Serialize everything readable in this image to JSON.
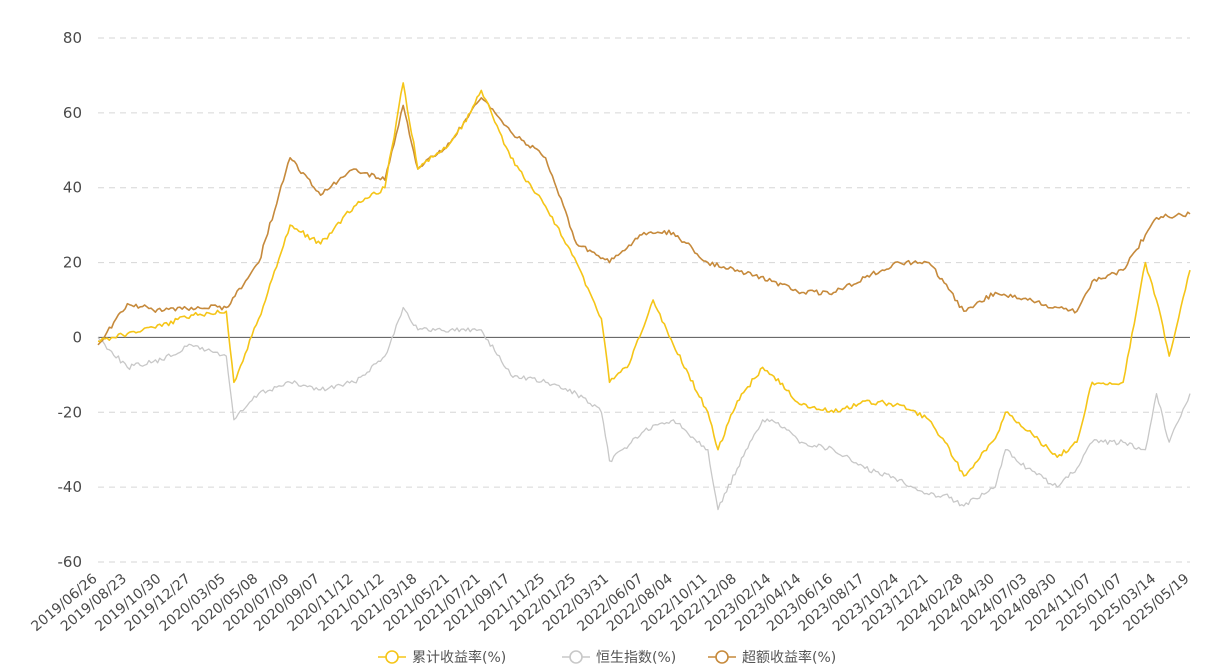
{
  "chart_data": {
    "type": "line",
    "title": "",
    "xlabel": "",
    "ylabel": "",
    "ylim": [
      -60,
      80
    ],
    "yticks": [
      80,
      60,
      40,
      20,
      0,
      -20,
      -40,
      -60
    ],
    "x_tick_labels": [
      "2019/06/26",
      "2019/08/23",
      "2019/10/30",
      "2019/12/27",
      "2020/03/05",
      "2020/05/08",
      "2020/07/09",
      "2020/09/07",
      "2020/11/12",
      "2021/01/12",
      "2021/03/18",
      "2021/05/21",
      "2021/07/21",
      "2021/09/17",
      "2021/11/25",
      "2022/01/25",
      "2022/03/31",
      "2022/06/07",
      "2022/08/04",
      "2022/10/11",
      "2022/12/08",
      "2023/02/14",
      "2023/04/14",
      "2023/06/16",
      "2023/08/17",
      "2023/10/24",
      "2023/12/21",
      "2024/02/28",
      "2024/04/30",
      "2024/07/03",
      "2024/08/30",
      "2024/11/07",
      "2025/01/07",
      "2025/03/14",
      "2025/05/19"
    ],
    "grid": true,
    "legend_position": "bottom",
    "series": [
      {
        "name": "累计收益率(%)",
        "color": "#f5c518",
        "x": [
          "2019/06/26",
          "2019/08/23",
          "2019/10/30",
          "2019/12/27",
          "2020/03/05",
          "2020/03/20",
          "2020/05/08",
          "2020/07/09",
          "2020/09/07",
          "2020/11/12",
          "2021/01/12",
          "2021/02/17",
          "2021/03/18",
          "2021/05/21",
          "2021/06/30",
          "2021/07/21",
          "2021/09/17",
          "2021/11/25",
          "2022/01/25",
          "2022/03/15",
          "2022/03/31",
          "2022/05/05",
          "2022/06/07",
          "2022/06/25",
          "2022/08/04",
          "2022/10/11",
          "2022/10/31",
          "2022/12/08",
          "2023/01/27",
          "2023/02/14",
          "2023/04/14",
          "2023/06/16",
          "2023/08/17",
          "2023/10/24",
          "2023/12/21",
          "2024/01/22",
          "2024/02/28",
          "2024/04/30",
          "2024/05/20",
          "2024/07/03",
          "2024/08/30",
          "2024/10/08",
          "2024/11/07",
          "2025/01/07",
          "2025/02/20",
          "2025/03/14",
          "2025/04/08",
          "2025/05/19"
        ],
        "values": [
          -1,
          1,
          3,
          6,
          7,
          -12,
          5,
          30,
          25,
          35,
          40,
          68,
          45,
          52,
          60,
          66,
          48,
          35,
          20,
          5,
          -12,
          -8,
          3,
          10,
          -2,
          -20,
          -30,
          -17,
          -8,
          -10,
          -18,
          -20,
          -17,
          -18,
          -22,
          -28,
          -37,
          -27,
          -20,
          -25,
          -32,
          -28,
          -12,
          -12,
          20,
          10,
          -5,
          18
        ]
      },
      {
        "name": "恒生指数(%)",
        "color": "#c8c8c8",
        "x": [
          "2019/06/26",
          "2019/08/23",
          "2019/10/30",
          "2019/12/27",
          "2020/03/05",
          "2020/03/20",
          "2020/05/08",
          "2020/07/09",
          "2020/09/07",
          "2020/11/12",
          "2021/01/12",
          "2021/02/17",
          "2021/03/18",
          "2021/05/21",
          "2021/07/21",
          "2021/09/17",
          "2021/11/25",
          "2022/01/25",
          "2022/03/15",
          "2022/03/31",
          "2022/06/07",
          "2022/08/04",
          "2022/10/11",
          "2022/10/31",
          "2022/12/08",
          "2023/01/27",
          "2023/02/14",
          "2023/04/14",
          "2023/06/16",
          "2023/08/17",
          "2023/10/24",
          "2023/12/21",
          "2024/01/22",
          "2024/02/28",
          "2024/04/30",
          "2024/05/20",
          "2024/07/03",
          "2024/08/30",
          "2024/10/08",
          "2024/11/07",
          "2025/01/07",
          "2025/02/20",
          "2025/03/14",
          "2025/04/08",
          "2025/05/19"
        ],
        "values": [
          0,
          -8,
          -6,
          -2,
          -5,
          -22,
          -15,
          -12,
          -14,
          -12,
          -5,
          8,
          2,
          2,
          2,
          -10,
          -12,
          -15,
          -20,
          -33,
          -25,
          -22,
          -30,
          -46,
          -35,
          -22,
          -22,
          -28,
          -30,
          -35,
          -38,
          -42,
          -42,
          -45,
          -40,
          -30,
          -35,
          -40,
          -35,
          -28,
          -28,
          -30,
          -15,
          -28,
          -15
        ]
      },
      {
        "name": "超额收益率(%)",
        "color": "#c68a3c",
        "x": [
          "2019/06/26",
          "2019/08/23",
          "2019/10/30",
          "2019/12/27",
          "2020/03/05",
          "2020/05/08",
          "2020/07/09",
          "2020/09/07",
          "2020/11/12",
          "2021/01/12",
          "2021/02/17",
          "2021/03/18",
          "2021/05/21",
          "2021/07/21",
          "2021/09/17",
          "2021/11/25",
          "2022/01/25",
          "2022/03/31",
          "2022/06/07",
          "2022/08/04",
          "2022/10/11",
          "2022/12/08",
          "2023/02/14",
          "2023/04/14",
          "2023/06/16",
          "2023/08/17",
          "2023/10/24",
          "2023/12/21",
          "2024/02/28",
          "2024/04/30",
          "2024/07/03",
          "2024/08/30",
          "2024/10/08",
          "2024/11/07",
          "2025/01/07",
          "2025/03/14",
          "2025/05/19"
        ],
        "values": [
          -2,
          9,
          7,
          8,
          8,
          20,
          48,
          38,
          45,
          42,
          62,
          45,
          52,
          64,
          55,
          48,
          25,
          20,
          28,
          28,
          20,
          18,
          15,
          12,
          12,
          16,
          20,
          20,
          7,
          12,
          10,
          8,
          7,
          15,
          18,
          32,
          33
        ]
      }
    ]
  }
}
